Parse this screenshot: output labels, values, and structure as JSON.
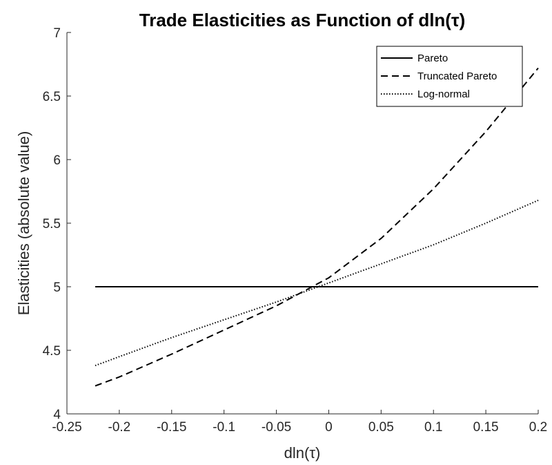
{
  "chart_data": {
    "type": "line",
    "title": "Trade Elasticities as Function of dln(τ)",
    "xlabel": "dln(τ)",
    "ylabel": "Elasticities (absolute value)",
    "xlim": [
      -0.25,
      0.2
    ],
    "ylim": [
      4,
      7
    ],
    "xticks": [
      -0.25,
      -0.2,
      -0.15,
      -0.1,
      -0.05,
      0,
      0.05,
      0.1,
      0.15,
      0.2
    ],
    "xtick_labels": [
      "-0.25",
      "-0.2",
      "-0.15",
      "-0.1",
      "-0.05",
      "0",
      "0.05",
      "0.1",
      "0.15",
      "0.2"
    ],
    "yticks": [
      4,
      4.5,
      5,
      5.5,
      6,
      6.5,
      7
    ],
    "ytick_labels": [
      "4",
      "4.5",
      "5",
      "5.5",
      "6",
      "6.5",
      "7"
    ],
    "grid": false,
    "legend_position": "top-right",
    "series": [
      {
        "name": "Pareto",
        "style": "solid",
        "color": "#000000",
        "x": [
          -0.223,
          -0.2,
          -0.15,
          -0.1,
          -0.05,
          0,
          0.05,
          0.1,
          0.15,
          0.2
        ],
        "y": [
          5.0,
          5.0,
          5.0,
          5.0,
          5.0,
          5.0,
          5.0,
          5.0,
          5.0,
          5.0
        ]
      },
      {
        "name": "Truncated Pareto",
        "style": "dashed",
        "color": "#000000",
        "x": [
          -0.223,
          -0.2,
          -0.15,
          -0.1,
          -0.05,
          0,
          0.05,
          0.1,
          0.15,
          0.2
        ],
        "y": [
          4.22,
          4.29,
          4.47,
          4.66,
          4.85,
          5.07,
          5.38,
          5.77,
          6.22,
          6.72
        ]
      },
      {
        "name": "Log-normal",
        "style": "dotted",
        "color": "#000000",
        "x": [
          -0.223,
          -0.2,
          -0.15,
          -0.1,
          -0.05,
          0,
          0.05,
          0.1,
          0.15,
          0.2
        ],
        "y": [
          4.38,
          4.45,
          4.6,
          4.74,
          4.88,
          5.03,
          5.18,
          5.33,
          5.5,
          5.68
        ]
      }
    ]
  }
}
